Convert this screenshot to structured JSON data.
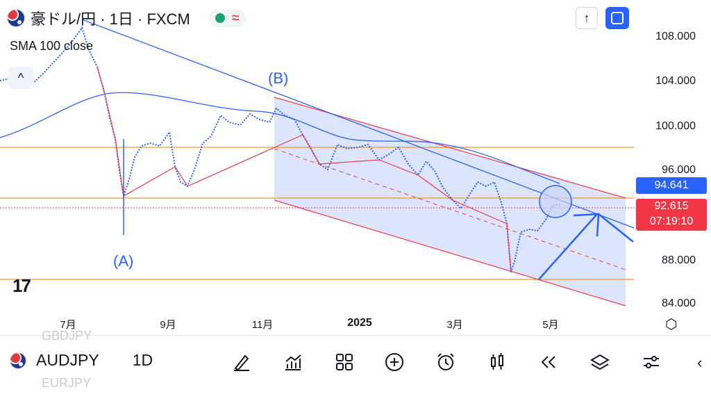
{
  "header": {
    "symbol_title": "豪ドル/円 · 1日 · FXCM",
    "status_wave": "≈"
  },
  "indicator": {
    "label": "SMA 100 close"
  },
  "buttons": {
    "collapse_glyph": "^",
    "up_glyph": "↑"
  },
  "logo": {
    "text": "17"
  },
  "annotations": {
    "label_a": "(A)",
    "label_b": "(B)"
  },
  "price_axis": {
    "labels": [
      "108.000",
      "104.000",
      "100.000",
      "96.000",
      "88.000",
      "84.000"
    ]
  },
  "price_tags": {
    "sma": "94.641",
    "last": "92.615",
    "countdown": "07:19:10"
  },
  "time_axis": {
    "labels": [
      "7月",
      "9月",
      "11月",
      "2025",
      "3月",
      "5月"
    ]
  },
  "bottom": {
    "symbol": "AUDJPY",
    "interval": "1D",
    "ghost_prev": "GBDJPY",
    "ghost_next": "EURJPY",
    "chevron": "‹"
  },
  "icons": {
    "flag": "australia-flag-icon",
    "tools": [
      "drawing-pen-icon",
      "indicators-icon",
      "grid-icon",
      "plus-circle-icon",
      "alarm-icon",
      "candles-icon",
      "replay-icon",
      "layers-icon",
      "settings-sliders-icon"
    ]
  },
  "colors": {
    "accent": "#2962ff",
    "up_candle": "#2962ff",
    "down_candle": "#f23645",
    "horizontal_levels": "#f7931a",
    "channel_fill": "#d6e0fb"
  }
}
